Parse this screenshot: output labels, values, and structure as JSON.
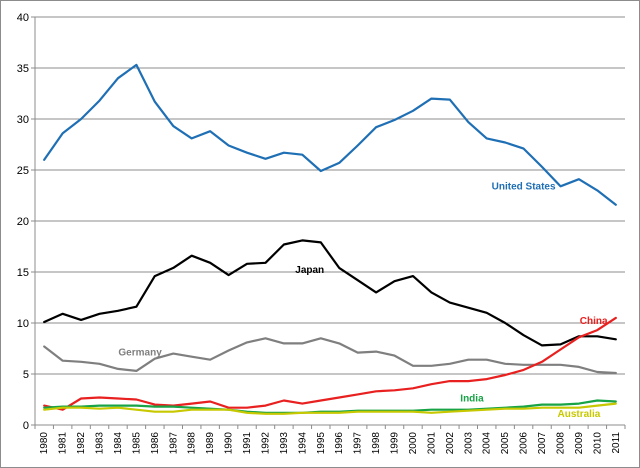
{
  "chart_data": {
    "type": "line",
    "title": "",
    "xlabel": "",
    "ylabel": "",
    "ylim": [
      0,
      40
    ],
    "y_ticks": [
      0,
      5,
      10,
      15,
      20,
      25,
      30,
      35,
      40
    ],
    "grid": "horizontal",
    "legend": "inline labels",
    "x": [
      "1980",
      "1981",
      "1982",
      "1983",
      "1984",
      "1985",
      "1986",
      "1987",
      "1988",
      "1989",
      "1990",
      "1991",
      "1992",
      "1993",
      "1994",
      "1995",
      "1996",
      "1997",
      "1998",
      "1999",
      "2000",
      "2001",
      "2002",
      "2003",
      "2004",
      "2005",
      "2006",
      "2007",
      "2008",
      "2009",
      "2010",
      "2011"
    ],
    "series": [
      {
        "name": "United States",
        "color": "#1f6fb5",
        "values": [
          26.0,
          28.6,
          30.0,
          31.8,
          34.0,
          35.3,
          31.7,
          29.3,
          28.1,
          28.8,
          27.4,
          26.7,
          26.1,
          26.7,
          26.5,
          24.9,
          25.7,
          27.4,
          29.2,
          29.9,
          30.8,
          32.0,
          31.9,
          29.7,
          28.1,
          27.7,
          27.1,
          25.3,
          23.4,
          24.1,
          23.0,
          21.6
        ]
      },
      {
        "name": "Japan",
        "color": "#000000",
        "values": [
          10.1,
          10.9,
          10.3,
          10.9,
          11.2,
          11.6,
          14.6,
          15.4,
          16.6,
          15.9,
          14.7,
          15.8,
          15.9,
          17.7,
          18.1,
          17.9,
          15.4,
          14.2,
          13.0,
          14.1,
          14.6,
          13.0,
          12.0,
          11.5,
          11.0,
          10.0,
          8.8,
          7.8,
          7.9,
          8.7,
          8.7,
          8.4
        ]
      },
      {
        "name": "Germany",
        "color": "#7f7f7f",
        "values": [
          7.7,
          6.3,
          6.2,
          6.0,
          5.5,
          5.3,
          6.5,
          7.0,
          6.7,
          6.4,
          7.3,
          8.1,
          8.5,
          8.0,
          8.0,
          8.5,
          8.0,
          7.1,
          7.2,
          6.8,
          5.8,
          5.8,
          6.0,
          6.4,
          6.4,
          6.0,
          5.9,
          5.9,
          5.9,
          5.7,
          5.2,
          5.1
        ]
      },
      {
        "name": "China",
        "color": "#e8201f",
        "values": [
          1.9,
          1.5,
          2.6,
          2.7,
          2.6,
          2.5,
          2.0,
          1.9,
          2.1,
          2.3,
          1.7,
          1.7,
          1.9,
          2.4,
          2.1,
          2.4,
          2.7,
          3.0,
          3.3,
          3.4,
          3.6,
          4.0,
          4.3,
          4.3,
          4.5,
          4.9,
          5.4,
          6.2,
          7.4,
          8.6,
          9.3,
          10.5
        ]
      },
      {
        "name": "India",
        "color": "#17a346",
        "values": [
          1.7,
          1.8,
          1.8,
          1.9,
          1.9,
          1.9,
          1.8,
          1.8,
          1.7,
          1.6,
          1.5,
          1.3,
          1.2,
          1.2,
          1.2,
          1.3,
          1.3,
          1.4,
          1.4,
          1.4,
          1.4,
          1.5,
          1.5,
          1.5,
          1.6,
          1.7,
          1.8,
          2.0,
          2.0,
          2.1,
          2.4,
          2.3
        ]
      },
      {
        "name": "Australia",
        "color": "#c8c800",
        "values": [
          1.5,
          1.7,
          1.7,
          1.6,
          1.7,
          1.5,
          1.3,
          1.3,
          1.5,
          1.5,
          1.5,
          1.2,
          1.1,
          1.1,
          1.2,
          1.2,
          1.2,
          1.3,
          1.3,
          1.3,
          1.3,
          1.2,
          1.3,
          1.4,
          1.5,
          1.6,
          1.6,
          1.7,
          1.7,
          1.7,
          1.9,
          2.1
        ]
      }
    ]
  }
}
